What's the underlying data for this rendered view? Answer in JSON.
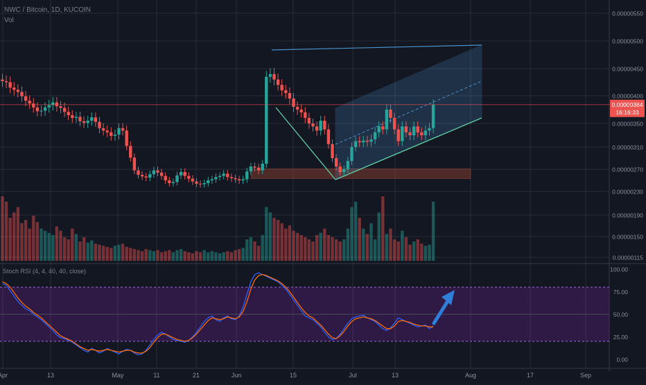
{
  "header": {
    "title": "NWC / Bitcoin, 1D, KUCOIN",
    "volume_label": "Vol"
  },
  "price_badge": {
    "value": "0.00000384",
    "countdown": "16:16:33",
    "color": "#ef5350"
  },
  "oscillator": {
    "label": "Stoch RSI (4, 4, 40, 40, close)",
    "levels": [
      80,
      20
    ],
    "band_color": "#7b1fa2"
  },
  "colors": {
    "up": "#26a69a",
    "down": "#ef5350",
    "channel": "#4a90c8",
    "zone": "#7f3b2e",
    "k_line": "#2962ff",
    "d_line": "#ff6d00",
    "arrow": "#2f7ed8"
  },
  "chart_data": [
    {
      "type": "candlestick",
      "title": "NWC / Bitcoin, 1D, KUCOIN",
      "x_tick_labels": [
        "Apr",
        "13",
        "May",
        "11",
        "21",
        "Jun",
        "15",
        "Jul",
        "13",
        "Aug",
        "17",
        "Sep"
      ],
      "y_tick_labels": [
        "0.00000550",
        "0.00000500",
        "0.00000450",
        "0.00000400",
        "0.00000350",
        "0.00000310",
        "0.00000270",
        "0.00000230",
        "0.00000190",
        "0.00000150",
        "0.00000115"
      ],
      "ylim": [
        1.12e-06,
        5.6e-06
      ],
      "last_price": 3.84e-06,
      "closes": [
        4.27e-06,
        4.25e-06,
        4.15e-06,
        4.11e-06,
        4.07e-06,
        3.99e-06,
        3.91e-06,
        3.86e-06,
        3.79e-06,
        3.72e-06,
        3.73e-06,
        3.79e-06,
        3.83e-06,
        3.88e-06,
        3.81e-06,
        3.78e-06,
        3.71e-06,
        3.65e-06,
        3.6e-06,
        3.62e-06,
        3.54e-06,
        3.51e-06,
        3.55e-06,
        3.61e-06,
        3.53e-06,
        3.42e-06,
        3.38e-06,
        3.35e-06,
        3.29e-06,
        3.31e-06,
        3.42e-06,
        3.38e-06,
        3.12e-06,
        2.91e-06,
        2.68e-06,
        2.6e-06,
        2.57e-06,
        2.55e-06,
        2.61e-06,
        2.68e-06,
        2.64e-06,
        2.58e-06,
        2.5e-06,
        2.45e-06,
        2.47e-06,
        2.59e-06,
        2.65e-06,
        2.58e-06,
        2.53e-06,
        2.48e-06,
        2.44e-06,
        2.43e-06,
        2.45e-06,
        2.5e-06,
        2.52e-06,
        2.56e-06,
        2.58e-06,
        2.62e-06,
        2.56e-06,
        2.54e-06,
        2.52e-06,
        2.5e-06,
        2.52e-06,
        2.66e-06,
        2.75e-06,
        2.73e-06,
        2.68e-06,
        2.8e-06,
        4.35e-06,
        4.4e-06,
        4.3e-06,
        4.2e-06,
        4.1e-06,
        4.05e-06,
        3.95e-06,
        3.8e-06,
        3.75e-06,
        3.7e-06,
        3.6e-06,
        3.5e-06,
        3.45e-06,
        3.38e-06,
        3.55e-06,
        3.4e-06,
        3.15e-06,
        2.9e-06,
        2.75e-06,
        2.65e-06,
        2.7e-06,
        2.85e-06,
        3.1e-06,
        3.2e-06,
        3.18e-06,
        3.21e-06,
        3.19e-06,
        3.23e-06,
        3.35e-06,
        3.45e-06,
        3.4e-06,
        3.75e-06,
        3.6e-06,
        3.4e-06,
        3.2e-06,
        3.45e-06,
        3.35e-06,
        3.3e-06,
        3.45e-06,
        3.35e-06,
        3.3e-06,
        3.38e-06,
        3.42e-06,
        3.84e-06
      ],
      "volumes": [
        60,
        55,
        40,
        45,
        50,
        35,
        38,
        30,
        42,
        36,
        30,
        28,
        26,
        24,
        32,
        28,
        22,
        20,
        30,
        25,
        18,
        22,
        17,
        19,
        16,
        15,
        14,
        13,
        12,
        14,
        15,
        16,
        13,
        12,
        11,
        10,
        9,
        11,
        10,
        9,
        10,
        8,
        9,
        10,
        8,
        10,
        11,
        9,
        8,
        7,
        9,
        8,
        10,
        8,
        9,
        8,
        7,
        8,
        9,
        8,
        10,
        11,
        12,
        20,
        22,
        18,
        14,
        24,
        50,
        45,
        40,
        38,
        35,
        30,
        33,
        28,
        26,
        24,
        22,
        20,
        18,
        24,
        26,
        30,
        24,
        22,
        20,
        18,
        20,
        30,
        50,
        55,
        40,
        30,
        25,
        35,
        20,
        45,
        60,
        25,
        30,
        20,
        18,
        28,
        22,
        15,
        18,
        20,
        16,
        14,
        15,
        55
      ],
      "series": [
        {
          "name": "Vol"
        }
      ]
    },
    {
      "type": "line",
      "title": "Stoch RSI (4, 4, 40, 40, close)",
      "y_tick_labels": [
        "100.00",
        "75.00",
        "50.00",
        "25.00",
        "0.00"
      ],
      "ylim": [
        -3,
        102
      ],
      "levels": [
        80,
        20
      ],
      "k_values": [
        84,
        82,
        76,
        70,
        64,
        60,
        56,
        54,
        50,
        47,
        44,
        40,
        36,
        32,
        27,
        24,
        23,
        21,
        19,
        16,
        13,
        10,
        8,
        12,
        10,
        7,
        9,
        12,
        10,
        8,
        6,
        9,
        11,
        10,
        7,
        5,
        6,
        10,
        16,
        22,
        27,
        30,
        28,
        25,
        22,
        21,
        20,
        19,
        21,
        25,
        30,
        36,
        42,
        46,
        48,
        44,
        42,
        46,
        48,
        45,
        44,
        48,
        58,
        72,
        86,
        94,
        96,
        94,
        92,
        90,
        88,
        86,
        82,
        78,
        72,
        66,
        60,
        54,
        48,
        46,
        44,
        40,
        36,
        30,
        25,
        22,
        23,
        28,
        34,
        40,
        45,
        47,
        48,
        49,
        46,
        44,
        42,
        38,
        34,
        32,
        35,
        40,
        46,
        44,
        42,
        40,
        38,
        36,
        37,
        38,
        34,
        37
      ],
      "d_values": [
        86,
        84,
        80,
        74,
        68,
        63,
        59,
        56,
        52,
        49,
        46,
        42,
        38,
        34,
        30,
        26,
        24,
        22,
        20,
        17,
        14,
        12,
        10,
        11,
        10,
        9,
        10,
        11,
        10,
        9,
        8,
        9,
        10,
        10,
        8,
        7,
        7,
        9,
        13,
        19,
        24,
        28,
        28,
        26,
        24,
        22,
        21,
        20,
        21,
        24,
        28,
        33,
        38,
        43,
        46,
        45,
        44,
        45,
        47,
        46,
        45,
        47,
        53,
        64,
        78,
        88,
        93,
        94,
        93,
        91,
        89,
        87,
        84,
        80,
        75,
        69,
        63,
        57,
        52,
        48,
        46,
        42,
        38,
        33,
        28,
        24,
        23,
        26,
        31,
        37,
        42,
        45,
        46,
        47,
        46,
        45,
        43,
        40,
        37,
        34,
        34,
        37,
        42,
        43,
        42,
        41,
        39,
        38,
        37,
        37,
        36,
        36
      ]
    }
  ]
}
